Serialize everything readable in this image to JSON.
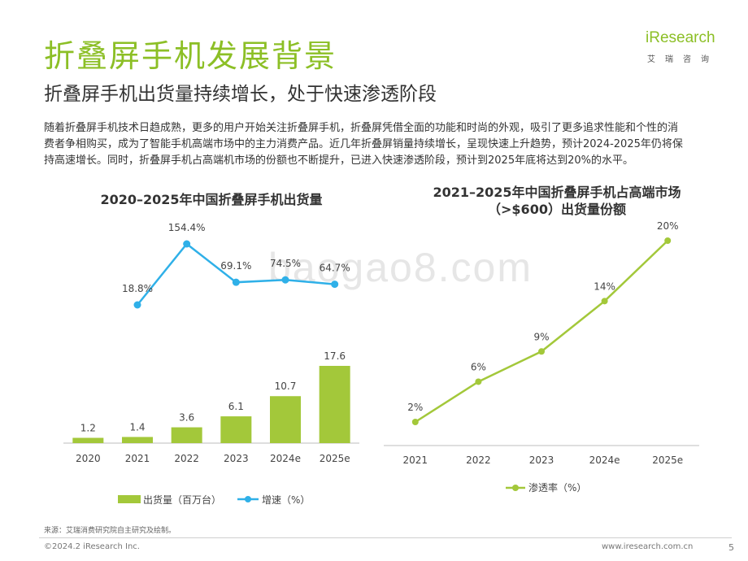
{
  "header": {
    "title": "折叠屏手机发展背景",
    "subtitle": "折叠屏手机出货量持续增长，处于快速渗透阶段"
  },
  "logo": {
    "wordmark": "iResearch",
    "cn": "艾瑞咨询",
    "color": "#8cbf26"
  },
  "intro": "随着折叠屏手机技术日趋成熟，更多的用户开始关注折叠屏手机，折叠屏凭借全面的功能和时尚的外观，吸引了更多追求性能和个性的消费者争相购买，成为了智能手机高端市场中的主力消费产品。近几年折叠屏销量持续增长，呈现快速上升趋势，预计2024-2025年仍将保持高速增长。同时，折叠屏手机占高端机市场的份额也不断提升，已进入快速渗透阶段，预计到2025年底将达到20%的水平。",
  "watermark": "baogao8.com",
  "chart_data": [
    {
      "type": "bar",
      "title": "2020–2025年中国折叠屏手机出货量",
      "categories": [
        "2020",
        "2021",
        "2022",
        "2023",
        "2024e",
        "2025e"
      ],
      "series": [
        {
          "name": "出货量（百万台）",
          "type": "bar",
          "values": [
            1.2,
            1.4,
            3.6,
            6.1,
            10.7,
            17.6
          ],
          "labels": [
            "1.2",
            "1.4",
            "3.6",
            "6.1",
            "10.7",
            "17.6"
          ],
          "color": "#a3c83a"
        },
        {
          "name": "增速（%）",
          "type": "line",
          "values": [
            null,
            18.8,
            154.4,
            69.1,
            74.5,
            64.7
          ],
          "labels": [
            "",
            "18.8%",
            "154.4%",
            "69.1%",
            "74.5%",
            "64.7%"
          ],
          "color": "#2fb0e8"
        }
      ],
      "legend_position": "bottom",
      "grid": false
    },
    {
      "type": "line",
      "title_line1": "2021–2025年中国折叠屏手机占高端市场",
      "title_line2": "（>$600）出货量份额",
      "categories": [
        "2021",
        "2022",
        "2023",
        "2024e",
        "2025e"
      ],
      "series": [
        {
          "name": "渗透率（%）",
          "values": [
            2,
            6,
            9,
            14,
            20
          ],
          "labels": [
            "2%",
            "6%",
            "9%",
            "14%",
            "20%"
          ],
          "color": "#a3c83a"
        }
      ],
      "legend_position": "bottom",
      "grid": false
    }
  ],
  "footer": {
    "source": "来源：艾瑞消费研究院自主研究及绘制。",
    "copyright": "©2024.2 iResearch Inc.",
    "website": "www.iresearch.com.cn",
    "page": "5"
  }
}
